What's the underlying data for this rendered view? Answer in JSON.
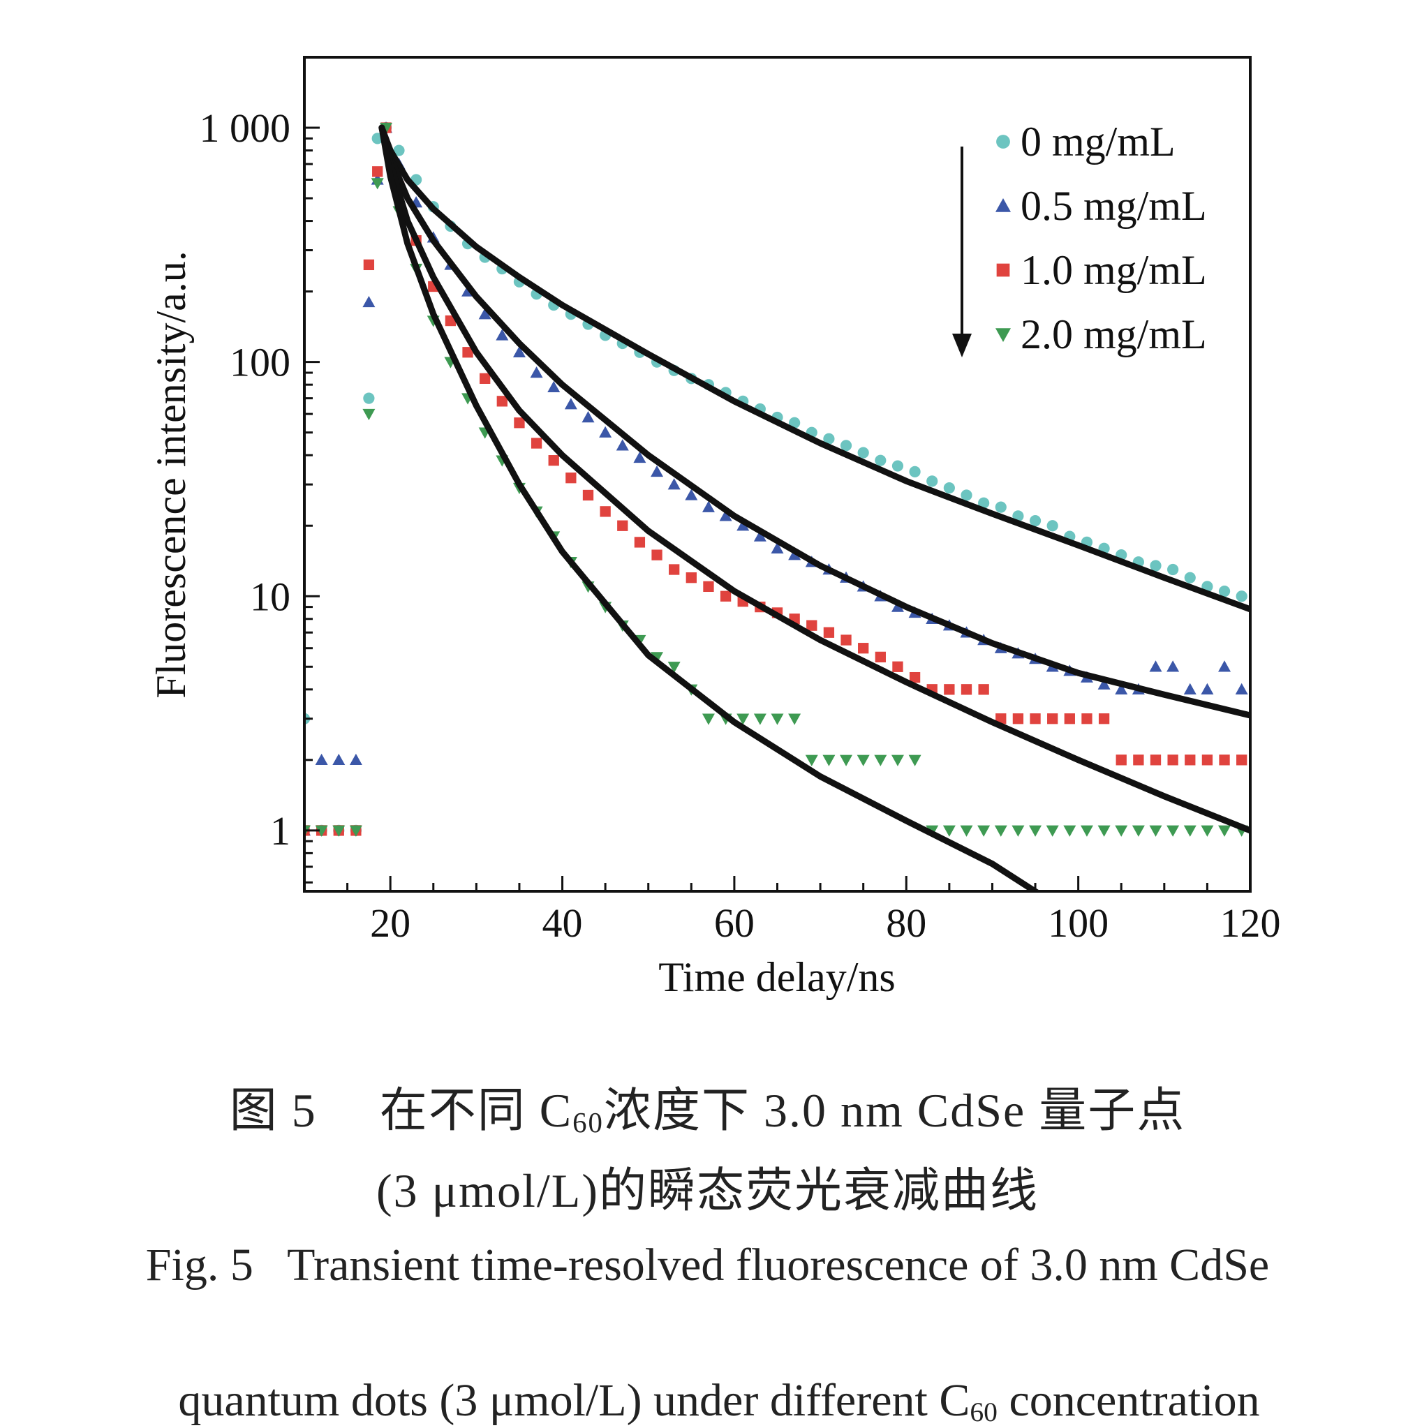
{
  "chart_data": {
    "type": "scatter",
    "title": "",
    "xlabel": "Time delay/ns",
    "ylabel": "Fluorescence intensity/a.u.",
    "xlim": [
      10,
      120
    ],
    "ylim": [
      0.55,
      2000
    ],
    "yscale": "log",
    "grid": false,
    "x_ticks": [
      20,
      40,
      60,
      80,
      100,
      120
    ],
    "x_tick_labels": [
      "20",
      "40",
      "60",
      "80",
      "100",
      "120"
    ],
    "y_ticks": [
      1,
      10,
      100,
      1000
    ],
    "y_tick_labels": [
      "1",
      "10",
      "100",
      "1 000"
    ],
    "legend_position": "top-right",
    "legend_arrow": "down",
    "series": [
      {
        "name": "0 mg/mL",
        "marker": "circle",
        "color": "#6cc4c0",
        "x": [
          10,
          12,
          14,
          16,
          17.5,
          18.5,
          19.5,
          21,
          23,
          25,
          27,
          29,
          31,
          33,
          35,
          37,
          39,
          41,
          43,
          45,
          47,
          49,
          51,
          53,
          55,
          57,
          59,
          61,
          63,
          65,
          67,
          69,
          71,
          73,
          75,
          77,
          79,
          81,
          83,
          85,
          87,
          89,
          91,
          93,
          95,
          97,
          99,
          101,
          103,
          105,
          107,
          109,
          111,
          113,
          115,
          117,
          119
        ],
        "y": [
          3,
          1,
          1,
          1,
          70,
          900,
          1000,
          800,
          600,
          460,
          380,
          320,
          280,
          250,
          220,
          195,
          175,
          160,
          145,
          130,
          120,
          110,
          100,
          92,
          85,
          80,
          74,
          68,
          63,
          58,
          55,
          50,
          47,
          44,
          41,
          38,
          36,
          34,
          31,
          29,
          27,
          25,
          24,
          22,
          21,
          20,
          18,
          17,
          16,
          15,
          14,
          13.5,
          13,
          12,
          11,
          10.5,
          10
        ]
      },
      {
        "name": "0.5 mg/mL",
        "marker": "triangle-up",
        "color": "#3b57a8",
        "x": [
          10,
          12,
          14,
          16,
          17.5,
          18.5,
          19.5,
          21,
          23,
          25,
          27,
          29,
          31,
          33,
          35,
          37,
          39,
          41,
          43,
          45,
          47,
          49,
          51,
          53,
          55,
          57,
          59,
          61,
          63,
          65,
          67,
          69,
          71,
          73,
          75,
          77,
          79,
          81,
          83,
          85,
          87,
          89,
          91,
          93,
          95,
          97,
          99,
          101,
          103,
          105,
          107,
          109,
          111,
          113,
          115,
          117,
          119
        ],
        "y": [
          1,
          2,
          2,
          2,
          180,
          600,
          1000,
          700,
          480,
          340,
          260,
          200,
          160,
          130,
          110,
          90,
          78,
          66,
          58,
          50,
          44,
          39,
          34,
          30,
          27,
          24,
          22,
          20,
          18,
          16,
          15,
          14,
          13,
          12,
          11,
          10,
          9,
          8.5,
          8,
          7.5,
          7,
          6.5,
          6,
          5.7,
          5.4,
          5,
          4.8,
          4.5,
          4.2,
          4,
          4,
          5,
          5,
          4,
          4,
          5,
          4
        ]
      },
      {
        "name": "1.0 mg/mL",
        "marker": "square",
        "color": "#e0433e",
        "x": [
          10,
          12,
          14,
          16,
          17.5,
          18.5,
          19.5,
          21,
          23,
          25,
          27,
          29,
          31,
          33,
          35,
          37,
          39,
          41,
          43,
          45,
          47,
          49,
          51,
          53,
          55,
          57,
          59,
          61,
          63,
          65,
          67,
          69,
          71,
          73,
          75,
          77,
          79,
          81,
          83,
          85,
          87,
          89,
          91,
          93,
          95,
          97,
          99,
          101,
          103,
          105,
          107,
          109,
          111,
          113,
          115,
          117,
          119
        ],
        "y": [
          1,
          1,
          1,
          1,
          260,
          650,
          1000,
          560,
          330,
          210,
          150,
          110,
          85,
          68,
          55,
          45,
          38,
          32,
          27,
          23,
          20,
          17,
          15,
          13,
          12,
          11,
          10,
          9.5,
          9,
          8.5,
          8,
          7.5,
          7,
          6.5,
          6,
          5.5,
          5,
          4.5,
          4,
          4,
          4,
          4,
          3,
          3,
          3,
          3,
          3,
          3,
          3,
          2,
          2,
          2,
          2,
          2,
          2,
          2,
          2
        ]
      },
      {
        "name": "2.0 mg/mL",
        "marker": "triangle-down",
        "color": "#3e9a52",
        "x": [
          10,
          12,
          14,
          16,
          17.5,
          18.5,
          19.5,
          21,
          23,
          25,
          27,
          29,
          31,
          33,
          35,
          37,
          39,
          41,
          43,
          45,
          47,
          49,
          51,
          53,
          55,
          57,
          59,
          61,
          63,
          65,
          67,
          69,
          71,
          73,
          75,
          77,
          79,
          81,
          83,
          85,
          87,
          89,
          91,
          93,
          95,
          97,
          99,
          101,
          103,
          105,
          107,
          109,
          111,
          113,
          115,
          117,
          119
        ],
        "y": [
          1,
          1,
          1,
          1,
          60,
          580,
          1000,
          440,
          250,
          150,
          100,
          70,
          50,
          38,
          29,
          23,
          18,
          14,
          11,
          9,
          7.5,
          6.5,
          5.5,
          5,
          4,
          3,
          3,
          3,
          3,
          3,
          3,
          2,
          2,
          2,
          2,
          2,
          2,
          2,
          1,
          1,
          1,
          1,
          1,
          1,
          1,
          1,
          1,
          1,
          1,
          1,
          1,
          1,
          1,
          1,
          1,
          1,
          1
        ]
      }
    ],
    "fit_curves": [
      {
        "x": [
          19,
          20,
          22,
          25,
          30,
          35,
          40,
          50,
          60,
          70,
          80,
          90,
          100,
          110,
          120
        ],
        "y": [
          1000,
          800,
          600,
          450,
          310,
          230,
          175,
          108,
          68,
          45,
          31,
          22.5,
          16.5,
          12,
          8.8
        ]
      },
      {
        "x": [
          19,
          20,
          22,
          25,
          30,
          35,
          40,
          50,
          60,
          70,
          80,
          90,
          100,
          110,
          120
        ],
        "y": [
          1000,
          750,
          500,
          330,
          190,
          120,
          80,
          40,
          22,
          13.5,
          9,
          6.3,
          4.7,
          3.8,
          3.1
        ]
      },
      {
        "x": [
          19,
          20,
          22,
          25,
          30,
          35,
          40,
          50,
          60,
          70,
          80,
          90,
          100,
          110,
          120
        ],
        "y": [
          1000,
          700,
          400,
          230,
          110,
          62,
          40,
          19,
          10.5,
          6.5,
          4.3,
          2.9,
          2,
          1.4,
          1.0
        ]
      },
      {
        "x": [
          19,
          20,
          22,
          25,
          30,
          35,
          40,
          50,
          60,
          70,
          80,
          90,
          96
        ],
        "y": [
          1000,
          620,
          320,
          160,
          65,
          30,
          15.5,
          5.6,
          2.9,
          1.7,
          1.1,
          0.72,
          0.52
        ]
      }
    ]
  },
  "caption": {
    "cn_line1_fig": "图 5",
    "cn_line1_a": "在不同 C",
    "cn_line1_sub": "60",
    "cn_line1_b": "浓度下 3.0 nm CdSe 量子点",
    "cn_line2": "(3 μmol/L)的瞬态荧光衰减曲线",
    "en_line1": "Fig. 5   Transient time-resolved fluorescence of 3.0 nm CdSe",
    "en_line2_a": "quantum dots (3 μmol/L) under different C",
    "en_line2_sub": "60",
    "en_line2_b": " concentration"
  }
}
